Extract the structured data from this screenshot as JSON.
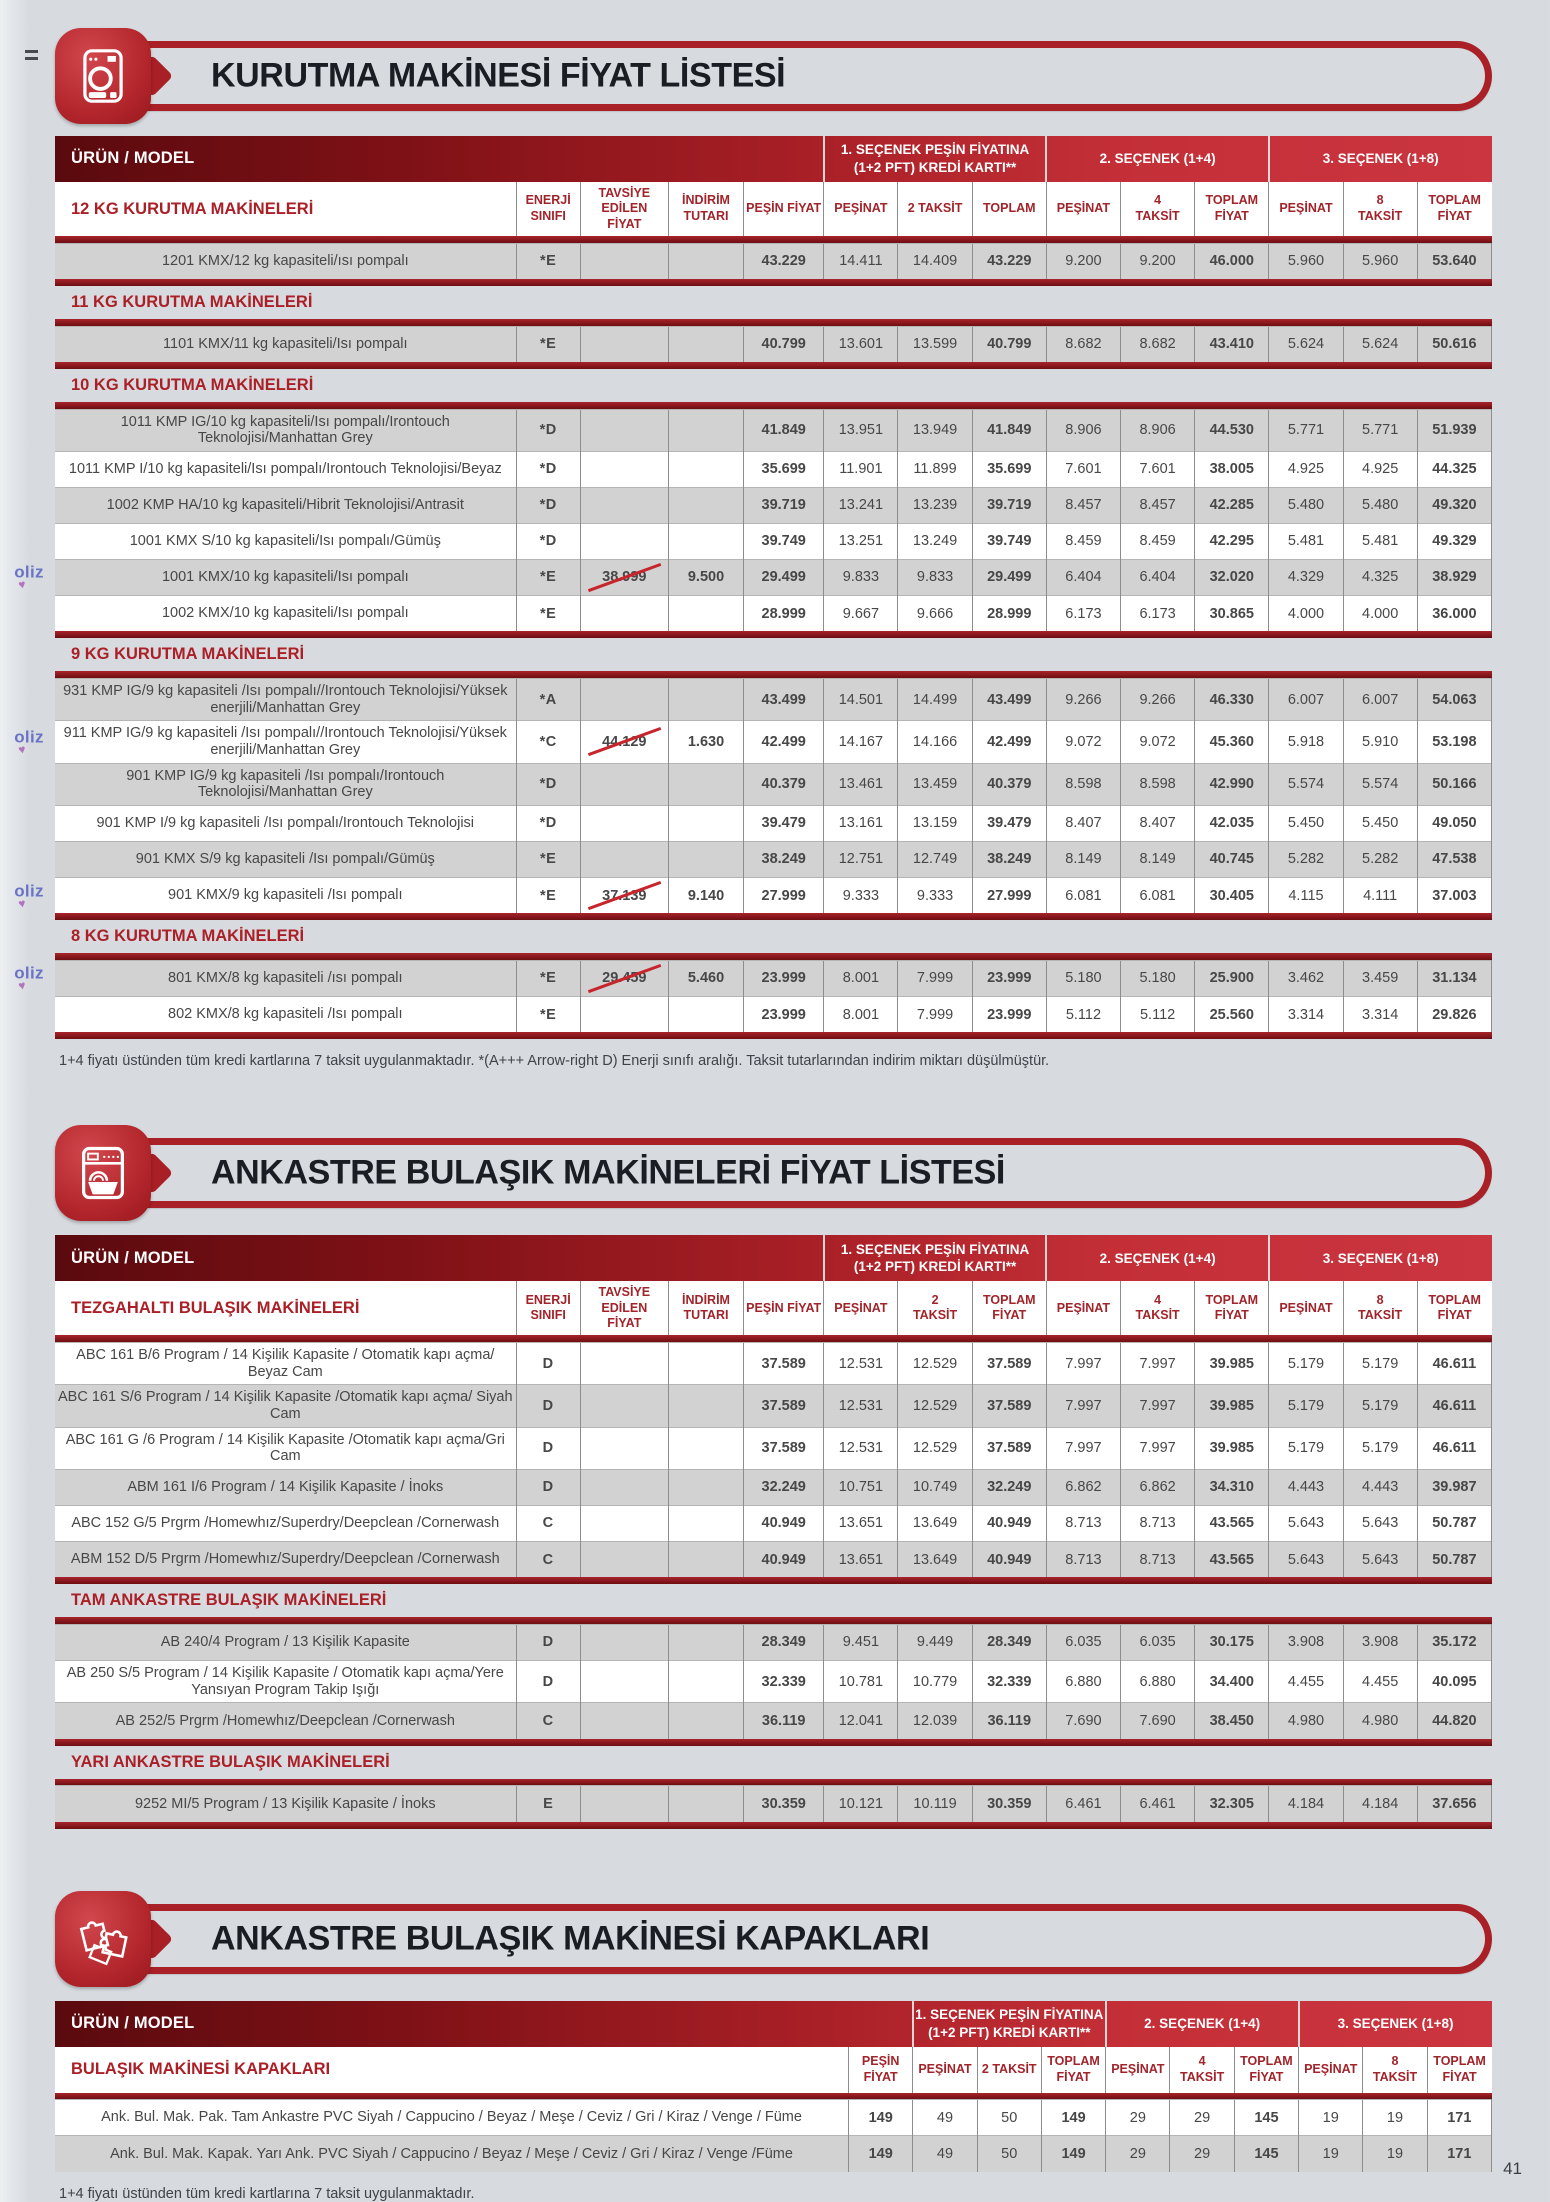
{
  "page": {
    "page_number": "41",
    "accent_red": "#a92026",
    "energy_green": "#00a14f"
  },
  "oliz_logo": {
    "text": "oliz",
    "heart": "♥"
  },
  "sections": [
    {
      "title": "KURUTMA MAKİNESİ FİYAT LİSTESİ",
      "footnote": "1+4 fiyatı üstünden tüm kredi kartlarına 7 taksit uygulanmaktadır. *(A+++ Arrow-right D) Enerji sınıfı aralığı. Taksit tutarlarından indirim miktarı düşülmüştür.",
      "table": {
        "product_header": "ÜRÜN / MODEL",
        "option_groups": [
          "1. SEÇENEK PEŞİN FİYATINA\n(1+2 PFT) KREDİ KARTI**",
          "2. SEÇENEK (1+4)",
          "3. SEÇENEK (1+8)"
        ],
        "first_section": "12 KG KURUTMA MAKİNELERİ",
        "col_headers": [
          "ENERJİ\nSINIFI",
          "TAVSİYE EDİLEN\nFİYAT",
          "İNDİRİM\nTUTARI",
          "PEŞİN FİYAT",
          "PEŞİNAT",
          "2 TAKSİT",
          "TOPLAM",
          "PEŞİNAT",
          "4\nTAKSİT",
          "TOPLAM\nFİYAT",
          "PEŞİNAT",
          "8\nTAKSİT",
          "TOPLAM\nFİYAT"
        ],
        "end_rule": true,
        "rows": [
          {
            "label": "1201 KMX/12 kg kapasiteli/ısı pompalı",
            "shade": "gray",
            "cells": [
              "*E",
              "",
              "",
              "43.229",
              "14.411",
              "14.409",
              "43.229",
              "9.200",
              "9.200",
              "46.000",
              "5.960",
              "5.960",
              "53.640"
            ]
          },
          {
            "section": "11 KG KURUTMA MAKİNELERİ"
          },
          {
            "label": "1101 KMX/11 kg kapasiteli/Isı pompalı",
            "shade": "gray",
            "cells": [
              "*E",
              "",
              "",
              "40.799",
              "13.601",
              "13.599",
              "40.799",
              "8.682",
              "8.682",
              "43.410",
              "5.624",
              "5.624",
              "50.616"
            ]
          },
          {
            "section": "10 KG KURUTMA MAKİNELERİ"
          },
          {
            "label": "1011 KMP IG/10 kg kapasiteli/Isı pompalı/Irontouch Teknolojisi/Manhattan Grey",
            "shade": "gray",
            "cells": [
              "*D",
              "",
              "",
              "41.849",
              "13.951",
              "13.949",
              "41.849",
              "8.906",
              "8.906",
              "44.530",
              "5.771",
              "5.771",
              "51.939"
            ]
          },
          {
            "label": "1011 KMP I/10 kg kapasiteli/Isı pompalı/Irontouch Teknolojisi/Beyaz",
            "shade": "white",
            "cells": [
              "*D",
              "",
              "",
              "35.699",
              "11.901",
              "11.899",
              "35.699",
              "7.601",
              "7.601",
              "38.005",
              "4.925",
              "4.925",
              "44.325"
            ]
          },
          {
            "label": "1002 KMP HA/10 kg kapasiteli/Hibrit Teknolojisi/Antrasit",
            "shade": "gray",
            "cells": [
              "*D",
              "",
              "",
              "39.719",
              "13.241",
              "13.239",
              "39.719",
              "8.457",
              "8.457",
              "42.285",
              "5.480",
              "5.480",
              "49.320"
            ]
          },
          {
            "label": "1001 KMX S/10 kg kapasiteli/Isı pompalı/Gümüş",
            "shade": "white",
            "cells": [
              "*D",
              "",
              "",
              "39.749",
              "13.251",
              "13.249",
              "39.749",
              "8.459",
              "8.459",
              "42.295",
              "5.481",
              "5.481",
              "49.329"
            ]
          },
          {
            "label": "1001 KMX/10 kg kapasiteli/Isı pompalı",
            "shade": "gray",
            "oliz": true,
            "strike": true,
            "cells": [
              "*E",
              "38.999",
              "9.500",
              "29.499",
              "9.833",
              "9.833",
              "29.499",
              "6.404",
              "6.404",
              "32.020",
              "4.329",
              "4.325",
              "38.929"
            ]
          },
          {
            "label": "1002 KMX/10 kg kapasiteli/Isı pompalı",
            "shade": "white",
            "cells": [
              "*E",
              "",
              "",
              "28.999",
              "9.667",
              "9.666",
              "28.999",
              "6.173",
              "6.173",
              "30.865",
              "4.000",
              "4.000",
              "36.000"
            ]
          },
          {
            "section": "9 KG KURUTMA MAKİNELERİ"
          },
          {
            "label": "931 KMP IG/9 kg kapasiteli /Isı pompalı//Irontouch Teknolojisi/Yüksek enerjili/Manhattan Grey",
            "shade": "gray",
            "cells": [
              "*A",
              "",
              "",
              "43.499",
              "14.501",
              "14.499",
              "43.499",
              "9.266",
              "9.266",
              "46.330",
              "6.007",
              "6.007",
              "54.063"
            ]
          },
          {
            "label": "911 KMP IG/9 kg kapasiteli /Isı pompalı//Irontouch Teknolojisi/Yüksek enerjili/Manhattan Grey",
            "shade": "white",
            "oliz": true,
            "strike": true,
            "cells": [
              "*C",
              "44.129",
              "1.630",
              "42.499",
              "14.167",
              "14.166",
              "42.499",
              "9.072",
              "9.072",
              "45.360",
              "5.918",
              "5.910",
              "53.198"
            ]
          },
          {
            "label": "901 KMP IG/9 kg kapasiteli /Isı pompalı/Irontouch Teknolojisi/Manhattan Grey",
            "shade": "gray",
            "cells": [
              "*D",
              "",
              "",
              "40.379",
              "13.461",
              "13.459",
              "40.379",
              "8.598",
              "8.598",
              "42.990",
              "5.574",
              "5.574",
              "50.166"
            ]
          },
          {
            "label": "901 KMP I/9 kg kapasiteli /Isı pompalı/Irontouch Teknolojisi",
            "shade": "white",
            "cells": [
              "*D",
              "",
              "",
              "39.479",
              "13.161",
              "13.159",
              "39.479",
              "8.407",
              "8.407",
              "42.035",
              "5.450",
              "5.450",
              "49.050"
            ]
          },
          {
            "label": "901 KMX S/9 kg kapasiteli /Isı pompalı/Gümüş",
            "shade": "gray",
            "cells": [
              "*E",
              "",
              "",
              "38.249",
              "12.751",
              "12.749",
              "38.249",
              "8.149",
              "8.149",
              "40.745",
              "5.282",
              "5.282",
              "47.538"
            ]
          },
          {
            "label": "901 KMX/9 kg kapasiteli /Isı pompalı",
            "shade": "white",
            "oliz": true,
            "strike": true,
            "cells": [
              "*E",
              "37.139",
              "9.140",
              "27.999",
              "9.333",
              "9.333",
              "27.999",
              "6.081",
              "6.081",
              "30.405",
              "4.115",
              "4.111",
              "37.003"
            ]
          },
          {
            "section": "8 KG KURUTMA MAKİNELERİ"
          },
          {
            "label": "801 KMX/8 kg kapasiteli /ısı pompalı",
            "shade": "gray",
            "oliz": true,
            "strike": true,
            "cells": [
              "*E",
              "29.459",
              "5.460",
              "23.999",
              "8.001",
              "7.999",
              "23.999",
              "5.180",
              "5.180",
              "25.900",
              "3.462",
              "3.459",
              "31.134"
            ]
          },
          {
            "label": "802 KMX/8 kg kapasiteli /Isı pompalı",
            "shade": "white",
            "cells": [
              "*E",
              "",
              "",
              "23.999",
              "8.001",
              "7.999",
              "23.999",
              "5.112",
              "5.112",
              "25.560",
              "3.314",
              "3.314",
              "29.826"
            ]
          }
        ]
      }
    },
    {
      "title": "ANKASTRE BULAŞIK MAKİNELERİ FİYAT LİSTESİ",
      "footnote": "",
      "table": {
        "product_header": "ÜRÜN / MODEL",
        "option_groups": [
          "1. SEÇENEK PEŞİN FİYATINA\n(1+2 PFT) KREDİ KARTI**",
          "2. SEÇENEK (1+4)",
          "3. SEÇENEK (1+8)"
        ],
        "first_section": "TEZGAHALTI BULAŞIK MAKİNELERİ",
        "col_headers": [
          "ENERJİ\nSINIFI",
          "TAVSİYE EDİLEN\nFİYAT",
          "İNDİRİM\nTUTARI",
          "PEŞİN FİYAT",
          "PEŞİNAT",
          "2\nTAKSİT",
          "TOPLAM\nFİYAT",
          "PEŞİNAT",
          "4\nTAKSİT",
          "TOPLAM\nFİYAT",
          "PEŞİNAT",
          "8\nTAKSİT",
          "TOPLAM\nFİYAT"
        ],
        "end_rule": true,
        "rows": [
          {
            "label": "ABC 161 B/6 Program / 14 Kişilik Kapasite / Otomatik kapı açma/ Beyaz Cam",
            "shade": "white",
            "cells": [
              "D",
              "",
              "",
              "37.589",
              "12.531",
              "12.529",
              "37.589",
              "7.997",
              "7.997",
              "39.985",
              "5.179",
              "5.179",
              "46.611"
            ]
          },
          {
            "label": "ABC 161 S/6 Program / 14 Kişilik Kapasite /Otomatik kapı açma/ Siyah Cam",
            "shade": "gray",
            "cells": [
              "D",
              "",
              "",
              "37.589",
              "12.531",
              "12.529",
              "37.589",
              "7.997",
              "7.997",
              "39.985",
              "5.179",
              "5.179",
              "46.611"
            ]
          },
          {
            "label": "ABC 161 G /6 Program / 14 Kişilik Kapasite /Otomatik kapı açma/Gri Cam",
            "shade": "white",
            "cells": [
              "D",
              "",
              "",
              "37.589",
              "12.531",
              "12.529",
              "37.589",
              "7.997",
              "7.997",
              "39.985",
              "5.179",
              "5.179",
              "46.611"
            ]
          },
          {
            "label": "ABM 161 I/6 Program / 14 Kişilik Kapasite / İnoks",
            "shade": "gray",
            "cells": [
              "D",
              "",
              "",
              "32.249",
              "10.751",
              "10.749",
              "32.249",
              "6.862",
              "6.862",
              "34.310",
              "4.443",
              "4.443",
              "39.987"
            ]
          },
          {
            "label": "ABC 152 G/5 Prgrm /Homewhız/Superdry/Deepclean /Cornerwash",
            "shade": "white",
            "cells": [
              "C",
              "",
              "",
              "40.949",
              "13.651",
              "13.649",
              "40.949",
              "8.713",
              "8.713",
              "43.565",
              "5.643",
              "5.643",
              "50.787"
            ]
          },
          {
            "label": "ABM 152 D/5 Prgrm /Homewhız/Superdry/Deepclean /Cornerwash",
            "shade": "gray",
            "cells": [
              "C",
              "",
              "",
              "40.949",
              "13.651",
              "13.649",
              "40.949",
              "8.713",
              "8.713",
              "43.565",
              "5.643",
              "5.643",
              "50.787"
            ]
          },
          {
            "section": "TAM ANKASTRE BULAŞIK MAKİNELERİ"
          },
          {
            "label": "AB 240/4 Program / 13 Kişilik Kapasite",
            "shade": "gray",
            "cells": [
              "D",
              "",
              "",
              "28.349",
              "9.451",
              "9.449",
              "28.349",
              "6.035",
              "6.035",
              "30.175",
              "3.908",
              "3.908",
              "35.172"
            ]
          },
          {
            "label": "AB 250 S/5 Program / 14 Kişilik Kapasite / Otomatik kapı açma/Yere Yansıyan Program Takip Işığı",
            "shade": "white",
            "cells": [
              "D",
              "",
              "",
              "32.339",
              "10.781",
              "10.779",
              "32.339",
              "6.880",
              "6.880",
              "34.400",
              "4.455",
              "4.455",
              "40.095"
            ]
          },
          {
            "label": "AB 252/5 Prgrm /Homewhız/Deepclean /Cornerwash",
            "shade": "gray",
            "cells": [
              "C",
              "",
              "",
              "36.119",
              "12.041",
              "12.039",
              "36.119",
              "7.690",
              "7.690",
              "38.450",
              "4.980",
              "4.980",
              "44.820"
            ]
          },
          {
            "section": "YARI ANKASTRE BULAŞIK MAKİNELERİ"
          },
          {
            "label": "9252 MI/5 Program / 13 Kişilik Kapasite / İnoks",
            "shade": "gray",
            "cells": [
              "E",
              "",
              "",
              "30.359",
              "10.121",
              "10.119",
              "30.359",
              "6.461",
              "6.461",
              "32.305",
              "4.184",
              "4.184",
              "37.656"
            ]
          }
        ]
      }
    },
    {
      "title": "ANKASTRE BULAŞIK MAKİNESİ KAPAKLARI",
      "footnote": "1+4 fiyatı üstünden tüm kredi kartlarına 7 taksit uygulanmaktadır.",
      "table": {
        "product_header": "ÜRÜN / MODEL",
        "option_groups": [
          "1. SEÇENEK PEŞİN FİYATINA\n(1+2 PFT) KREDİ KARTI**",
          "2. SEÇENEK (1+4)",
          "3. SEÇENEK (1+8)"
        ],
        "first_section": "BULAŞIK MAKİNESİ KAPAKLARI",
        "col_headers": [
          "PEŞİN\nFİYAT",
          "PEŞİNAT",
          "2 TAKSİT",
          "TOPLAM\nFİYAT",
          "PEŞİNAT",
          "4\nTAKSİT",
          "TOPLAM\nFİYAT",
          "PEŞİNAT",
          "8\nTAKSİT",
          "TOPLAM\nFİYAT"
        ],
        "end_rule": false,
        "rows": [
          {
            "label": "Ank. Bul. Mak. Pak. Tam Ankastre PVC Siyah / Cappucino / Beyaz / Meşe / Ceviz / Gri / Kiraz / Venge / Füme",
            "shade": "white",
            "cells": [
              "149",
              "49",
              "50",
              "149",
              "29",
              "29",
              "145",
              "19",
              "19",
              "171"
            ]
          },
          {
            "label": "Ank. Bul. Mak. Kapak. Yarı Ank. PVC Siyah / Cappucino / Beyaz / Meşe / Ceviz / Gri / Kiraz / Venge /Füme",
            "shade": "gray",
            "cells": [
              "149",
              "49",
              "50",
              "149",
              "29",
              "29",
              "145",
              "19",
              "19",
              "171"
            ]
          }
        ]
      }
    }
  ]
}
